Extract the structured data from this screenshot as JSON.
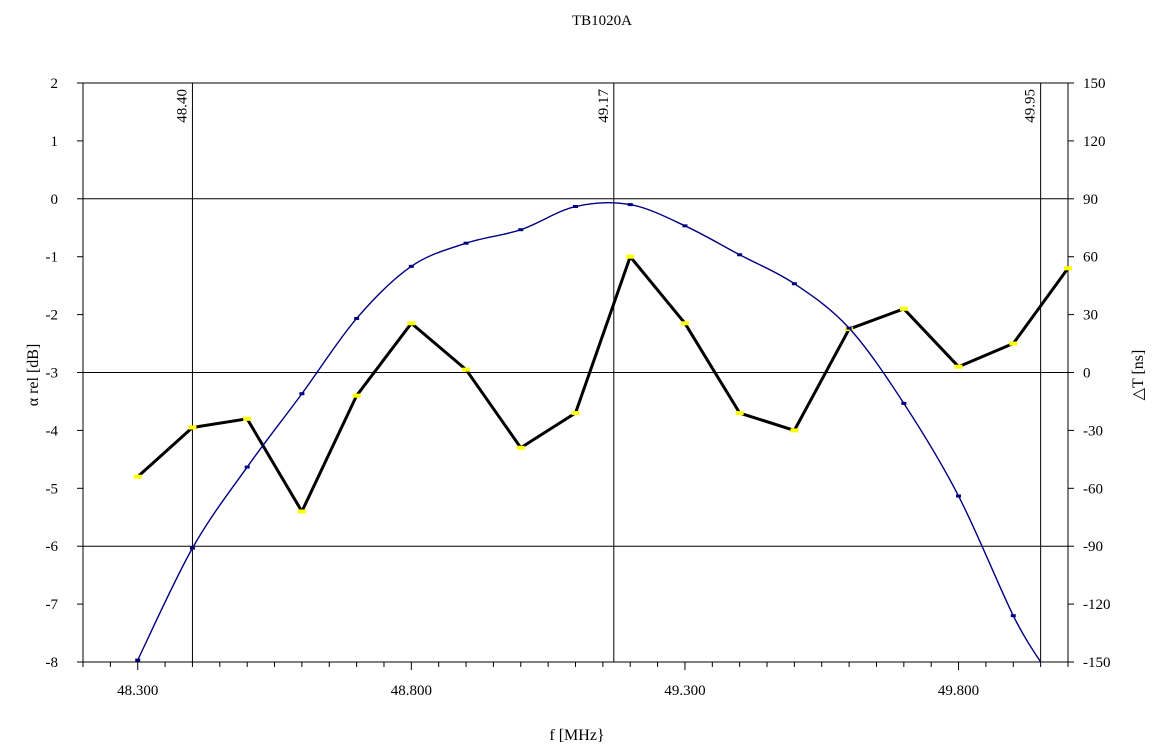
{
  "chart_data": {
    "type": "line",
    "title": "TB1020A",
    "xlabel": "f  [MHz}",
    "ylabel": "α rel [dB]",
    "y2label": "△T [ns]",
    "xlim": [
      48.2,
      50.0
    ],
    "ylim": [
      -8,
      2
    ],
    "y2lim": [
      -150,
      150
    ],
    "x_ticks": [
      48.3,
      48.8,
      49.3,
      49.8
    ],
    "x_tick_labels": [
      "48.300",
      "48.800",
      "49.300",
      "49.800"
    ],
    "y_ticks": [
      2,
      1,
      0,
      -1,
      -2,
      -3,
      -4,
      -5,
      -6,
      -7,
      -8
    ],
    "y_tick_labels": [
      "2",
      "1",
      "0",
      "-1",
      "-2",
      "-3",
      "-4",
      "-5",
      "-6",
      "-7",
      "-8"
    ],
    "y2_ticks": [
      150,
      120,
      90,
      60,
      30,
      0,
      -30,
      -60,
      -90,
      -120,
      -150
    ],
    "y2_tick_labels": [
      "150",
      "120",
      "90",
      "60",
      "30",
      "0",
      "-30",
      "-60",
      "-90",
      "-120",
      "-150"
    ],
    "grid": "horizontal lines at -150, -90, 0, 90, 150 ns",
    "hlines_y2": [
      90,
      0,
      -90
    ],
    "markers": [
      {
        "x": 48.4,
        "label": "48.40"
      },
      {
        "x": 49.17,
        "label": "49.17"
      },
      {
        "x": 49.95,
        "label": "49.95"
      }
    ],
    "series": [
      {
        "axis": "left",
        "color": "#000000",
        "marker_color": "#ffff00",
        "x": [
          48.3,
          48.4,
          48.5,
          48.6,
          48.7,
          48.8,
          48.9,
          49.0,
          49.1,
          49.2,
          49.3,
          49.4,
          49.5,
          49.6,
          49.7,
          49.8,
          49.9,
          50.0
        ],
        "values": [
          -4.8,
          -3.95,
          -3.8,
          -5.4,
          -3.4,
          -2.15,
          -2.95,
          -4.3,
          -3.7,
          -1.0,
          -2.15,
          -3.7,
          -4.0,
          -2.25,
          -1.9,
          -2.9,
          -2.5,
          -1.2
        ]
      },
      {
        "axis": "right",
        "color": "#000080",
        "marker_color": "#000080",
        "x": [
          48.3,
          48.4,
          48.5,
          48.6,
          48.7,
          48.8,
          48.9,
          49.0,
          49.1,
          49.2,
          49.3,
          49.4,
          49.5,
          49.6,
          49.7,
          49.8,
          49.9,
          49.95
        ],
        "values": [
          -149,
          -91,
          -49,
          -11,
          28,
          55,
          67,
          74,
          86,
          87,
          76,
          61,
          46,
          23,
          -16,
          -64,
          -126,
          -150
        ]
      }
    ]
  }
}
